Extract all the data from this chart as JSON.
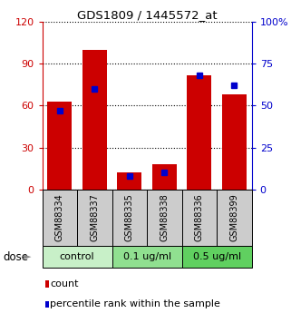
{
  "title": "GDS1809 / 1445572_at",
  "samples": [
    "GSM88334",
    "GSM88337",
    "GSM88335",
    "GSM88338",
    "GSM88336",
    "GSM88399"
  ],
  "count_values": [
    63,
    100,
    12,
    18,
    82,
    68
  ],
  "percentile_values": [
    47,
    60,
    8,
    10,
    68,
    62
  ],
  "groups": [
    {
      "label": "control",
      "span": [
        0,
        2
      ],
      "color": "#c8f0c8"
    },
    {
      "label": "0.1 ug/ml",
      "span": [
        2,
        4
      ],
      "color": "#90e090"
    },
    {
      "label": "0.5 ug/ml",
      "span": [
        4,
        6
      ],
      "color": "#60d060"
    }
  ],
  "left_axis_color": "#cc0000",
  "right_axis_color": "#0000cc",
  "bar_color": "#cc0000",
  "dot_color": "#0000cc",
  "ylim_left": [
    0,
    120
  ],
  "ylim_right": [
    0,
    100
  ],
  "left_ticks": [
    0,
    30,
    60,
    90,
    120
  ],
  "right_ticks": [
    0,
    25,
    50,
    75,
    100
  ],
  "grid_color": "black",
  "background_color": "#ffffff",
  "bar_width": 0.7,
  "sample_box_color": "#cccccc",
  "dose_label": "dose",
  "legend_count": "count",
  "legend_percentile": "percentile rank within the sample"
}
